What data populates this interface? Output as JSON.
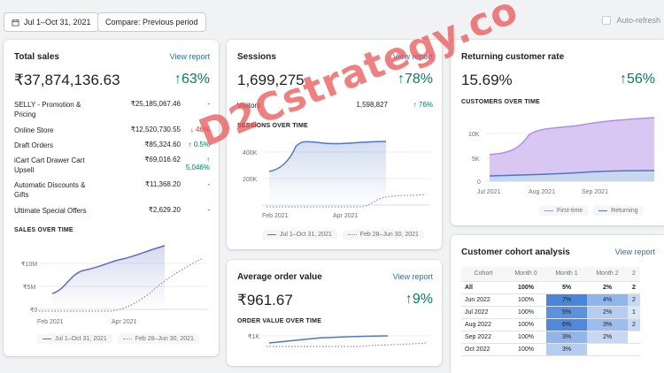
{
  "topbar": {
    "date_range": "Jul 1–Oct 31, 2021",
    "compare": "Compare: Previous period",
    "auto_refresh": "Auto-refresh"
  },
  "total_sales": {
    "title": "Total sales",
    "view_report": "View report",
    "value": "₹37,874,136.63",
    "change": "↑63%",
    "rows": [
      {
        "name": "SELLY - Promotion & Pricing",
        "value": "₹25,185,067.46",
        "change": "-"
      },
      {
        "name": "Online Store",
        "value": "₹12,520,730.55",
        "change": "↓ 46%"
      },
      {
        "name": "Draft Orders",
        "value": "₹85,324.60",
        "change": "↑ 0.5%"
      },
      {
        "name": "iCart Cart Drawer Cart Upsell",
        "value": "₹69,016.62",
        "change": "↑ 5,046%"
      },
      {
        "name": "Automatic Discounts & Gifts",
        "value": "₹11,368.20",
        "change": "-"
      },
      {
        "name": "Ultimate Special Offers",
        "value": "₹2,629.20",
        "change": "-"
      }
    ],
    "chart_label": "SALES OVER TIME",
    "y_ticks": [
      "₹10M",
      "₹5M",
      "₹0"
    ],
    "x_ticks": [
      "Feb 2021",
      "Apr 2021"
    ],
    "legend": [
      "Jul 1–Oct 31, 2021",
      "Feb 28–Jun 30, 2021"
    ]
  },
  "sessions": {
    "title": "Sessions",
    "view_report": "View report",
    "value": "1,699,275",
    "change": "↑78%",
    "visitors_label": "Visitors",
    "visitors_value": "1,598,827",
    "visitors_change": "↑ 76%",
    "chart_label": "SESSIONS OVER TIME",
    "y_ticks": [
      "400K",
      "200K"
    ],
    "x_ticks": [
      "Feb 2021",
      "Apr 2021"
    ],
    "legend": [
      "Jul 1–Oct 31, 2021",
      "Feb 28–Jun 30, 2021"
    ]
  },
  "aov": {
    "title": "Average order value",
    "view_report": "View report",
    "value": "₹961.67",
    "change": "↑9%",
    "chart_label": "ORDER VALUE OVER TIME",
    "y_ticks": [
      "₹1K"
    ]
  },
  "returning": {
    "title": "Returning customer rate",
    "value": "15.69%",
    "change": "↑56%",
    "chart_label": "CUSTOMERS OVER TIME",
    "y_ticks": [
      "10K",
      "5K",
      "0"
    ],
    "x_ticks": [
      "Jul 2021",
      "Aug 2021",
      "Sep 2021"
    ],
    "legend": [
      "First-time",
      "Returning"
    ]
  },
  "cohort": {
    "title": "Customer cohort analysis",
    "view_report": "View report",
    "headers": [
      "Cohort",
      "Month 0",
      "Month 1",
      "Month 2",
      "2"
    ],
    "rows": [
      [
        "All",
        "100%",
        "5%",
        "2%",
        "2"
      ],
      [
        "Jun 2022",
        "100%",
        "7%",
        "4%",
        "2"
      ],
      [
        "Jul 2022",
        "100%",
        "5%",
        "2%",
        "1"
      ],
      [
        "Aug 2022",
        "100%",
        "6%",
        "3%",
        "2"
      ],
      [
        "Sep 2022",
        "100%",
        "3%",
        "2%",
        ""
      ],
      [
        "Oct 2022",
        "100%",
        "3%",
        "",
        ""
      ]
    ]
  },
  "watermark": "D2Cstrategy.co"
}
